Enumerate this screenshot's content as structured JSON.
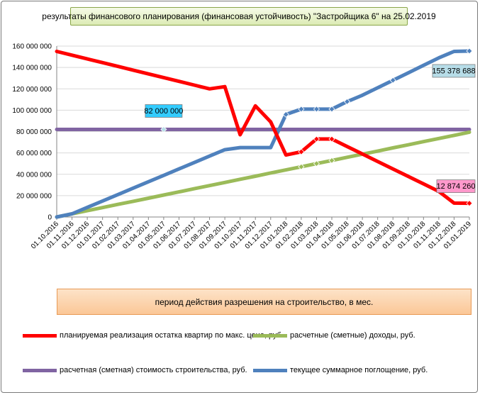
{
  "title": "результаты финансового планирования  (финансовая устойчивость) \"Застройщика  6\" на 25.02.2019",
  "xlabel": "период  действия разрешения на строительство, в мес.",
  "colors": {
    "red": "#ff0000",
    "green": "#9bbb59",
    "purple": "#8064a2",
    "blue": "#4f81bd",
    "callout_blue": "#b7dde8",
    "callout_pink": "#ff99cc",
    "callout_cyan": "#33ccff"
  },
  "legend": [
    {
      "label": "планируемая реализация остатка квартир по макс. цене, руб.",
      "color": "#ff0000"
    },
    {
      "label": "расчетные (сметные) доходы, руб.",
      "color": "#9bbb59"
    },
    {
      "label": "расчетная (сметная) стоимость строительства, руб.",
      "color": "#8064a2"
    },
    {
      "label": "текущее суммарное поглощение, руб.",
      "color": "#4f81bd"
    }
  ],
  "callouts": [
    {
      "text": "82 000 000",
      "series": "расчетная (сметная) стоимость строительства, руб.",
      "x": "01.05.2017",
      "y": 82000000
    },
    {
      "text": "155 378 688",
      "series": "текущее суммарное поглощение, руб.",
      "x": "01.01.2019",
      "y": 155378688
    },
    {
      "text": "12 874 260",
      "series": "планируемая реализация остатка квартир по макс. цене, руб.",
      "x": "01.01.2019",
      "y": 12874260
    }
  ],
  "chart_data": {
    "type": "line",
    "xlabel": "период  действия разрешения на строительство, в мес.",
    "ylabel": "",
    "ylim": [
      0,
      160000000
    ],
    "yticks": [
      0,
      20000000,
      40000000,
      60000000,
      80000000,
      100000000,
      120000000,
      140000000,
      160000000
    ],
    "ytick_labels": [
      "0",
      "20 000 000",
      "40 000 000",
      "60 000 000",
      "80 000 000",
      "100 000 000",
      "120 000 000",
      "140 000 000",
      "160 000 000"
    ],
    "grid": "horizontal",
    "legend_position": "bottom",
    "categories": [
      "01.10.2016",
      "01.11.2016",
      "01.12.2016",
      "01.01.2017",
      "01.02.2017",
      "01.03.2017",
      "01.04.2017",
      "01.05.2017",
      "01.06.2017",
      "01.07.2017",
      "01.08.2017",
      "01.09.2017",
      "01.10.2017",
      "01.11.2017",
      "01.12.2017",
      "01.01.2018",
      "01.02.2018",
      "01.03.2018",
      "01.04.2018",
      "01.05.2018",
      "01.06.2018",
      "01.07.2018",
      "01.08.2018",
      "01.09.2018",
      "01.10.2018",
      "01.11.2018",
      "01.12.2018",
      "01.01.2019"
    ],
    "series": [
      {
        "name": "планируемая реализация остатка квартир по макс. цене, руб.",
        "color": "#ff0000",
        "values": [
          155000000,
          151500000,
          148000000,
          144500000,
          141000000,
          137500000,
          134000000,
          130500000,
          127000000,
          123500000,
          120000000,
          122000000,
          77000000,
          104000000,
          89000000,
          58000000,
          61000000,
          73000000,
          73000000,
          66000000,
          59000000,
          52000000,
          45000000,
          38000000,
          31000000,
          24000000,
          13000000,
          12874260
        ],
        "markers": [
          "01.02.2018",
          "01.03.2018",
          "01.04.2018",
          "01.01.2019"
        ]
      },
      {
        "name": "расчетные (сметные) доходы, руб.",
        "color": "#9bbb59",
        "values": [
          0,
          2900000,
          5900000,
          8800000,
          11800000,
          14700000,
          17600000,
          20600000,
          23500000,
          26500000,
          29400000,
          32300000,
          35300000,
          38200000,
          41200000,
          44100000,
          47000000,
          50000000,
          52900000,
          55900000,
          58800000,
          61700000,
          64700000,
          67600000,
          70600000,
          73500000,
          76400000,
          79400000
        ],
        "markers": [
          "01.02.2018",
          "01.03.2018",
          "01.04.2018"
        ]
      },
      {
        "name": "расчетная (сметная) стоимость строительства, руб.",
        "color": "#8064a2",
        "values": [
          82000000,
          82000000,
          82000000,
          82000000,
          82000000,
          82000000,
          82000000,
          82000000,
          82000000,
          82000000,
          82000000,
          82000000,
          82000000,
          82000000,
          82000000,
          82000000,
          82000000,
          82000000,
          82000000,
          82000000,
          82000000,
          82000000,
          82000000,
          82000000,
          82000000,
          82000000,
          82000000,
          82000000
        ],
        "markers": [
          "01.05.2017"
        ]
      },
      {
        "name": "текущее суммарное поглощение, руб.",
        "color": "#4f81bd",
        "values": [
          0,
          3000000,
          9000000,
          15000000,
          21000000,
          27000000,
          33000000,
          39000000,
          45000000,
          51000000,
          57000000,
          63000000,
          65000000,
          65000000,
          65000000,
          96000000,
          101000000,
          101000000,
          101000000,
          108000000,
          114000000,
          121000000,
          128000000,
          135000000,
          142000000,
          149000000,
          155000000,
          155378688
        ],
        "markers": [
          "01.01.2018",
          "01.02.2018",
          "01.03.2018",
          "01.04.2018",
          "01.05.2018",
          "01.08.2018",
          "01.01.2019"
        ]
      }
    ]
  }
}
